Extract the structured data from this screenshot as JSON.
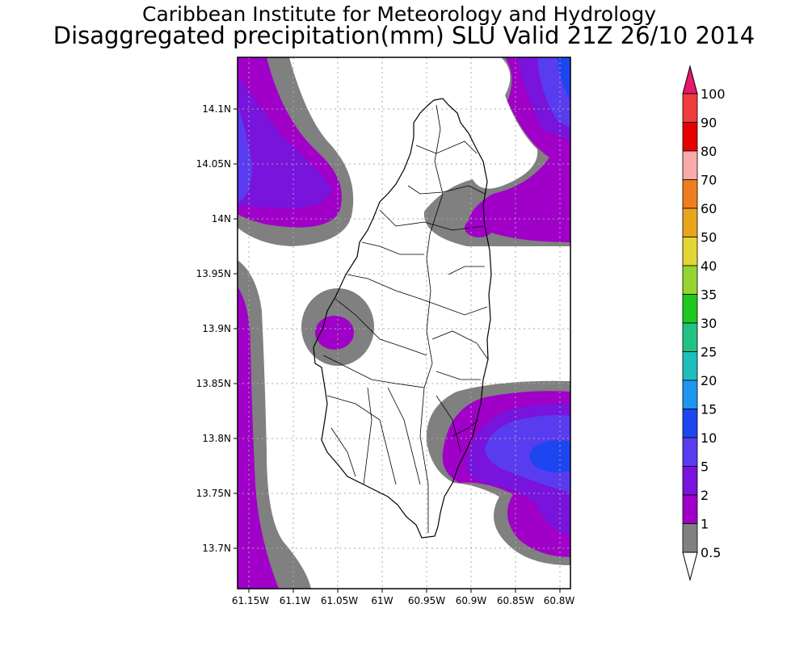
{
  "title": "Caribbean Institute for Meteorology and Hydrology",
  "subtitle": "Disaggregated precipitation(mm) SLU Valid 21Z 26/10 2014",
  "map": {
    "lon_ticks": [
      "61.15W",
      "61.1W",
      "61.05W",
      "61W",
      "60.95W",
      "60.9W",
      "60.85W",
      "60.8W"
    ],
    "lat_ticks": [
      "14.1N",
      "14.05N",
      "14N",
      "13.95N",
      "13.9N",
      "13.85N",
      "13.8N",
      "13.75N",
      "13.7N"
    ]
  },
  "legend": {
    "levels": [
      {
        "label": "100",
        "color": "#e8186e"
      },
      {
        "label": "90",
        "color": "#f03c3c"
      },
      {
        "label": "80",
        "color": "#e60000"
      },
      {
        "label": "70",
        "color": "#f9aaaa"
      },
      {
        "label": "60",
        "color": "#ef7d1e"
      },
      {
        "label": "50",
        "color": "#e8a41e"
      },
      {
        "label": "40",
        "color": "#e2d634"
      },
      {
        "label": "35",
        "color": "#96d432"
      },
      {
        "label": "30",
        "color": "#1ec81e"
      },
      {
        "label": "25",
        "color": "#22c285"
      },
      {
        "label": "20",
        "color": "#1ebebe"
      },
      {
        "label": "15",
        "color": "#1e96f0"
      },
      {
        "label": "10",
        "color": "#1e46f0"
      },
      {
        "label": "5",
        "color": "#5a3cf0"
      },
      {
        "label": "2",
        "color": "#7814dc"
      },
      {
        "label": "1",
        "color": "#a000c8"
      },
      {
        "label": "0.5",
        "color": "#808080"
      }
    ]
  }
}
